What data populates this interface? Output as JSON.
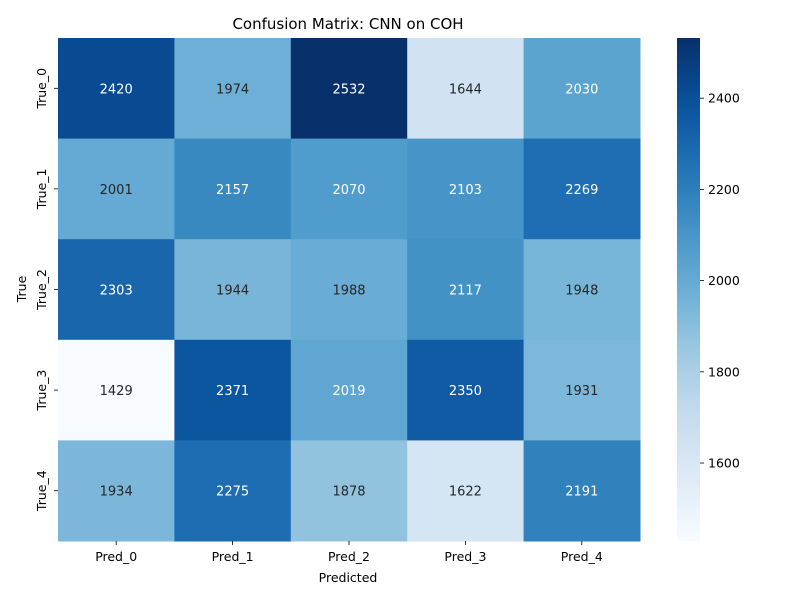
{
  "chart_data": {
    "type": "heatmap",
    "title": "Confusion Matrix: CNN on COH",
    "xlabel": "Predicted",
    "ylabel": "True",
    "x_categories": [
      "Pred_0",
      "Pred_1",
      "Pred_2",
      "Pred_3",
      "Pred_4"
    ],
    "y_categories": [
      "True_0",
      "True_1",
      "True_2",
      "True_3",
      "True_4"
    ],
    "values": [
      [
        2420,
        1974,
        2532,
        1644,
        2030
      ],
      [
        2001,
        2157,
        2070,
        2103,
        2269
      ],
      [
        2303,
        1944,
        1988,
        2117,
        1948
      ],
      [
        1429,
        2371,
        2019,
        2350,
        1931
      ],
      [
        1934,
        2275,
        1878,
        1622,
        2191
      ]
    ],
    "colormap": "Blues",
    "color_range": [
      1429,
      2532
    ],
    "colorbar_ticks": [
      1600,
      1800,
      2000,
      2200,
      2400
    ]
  }
}
